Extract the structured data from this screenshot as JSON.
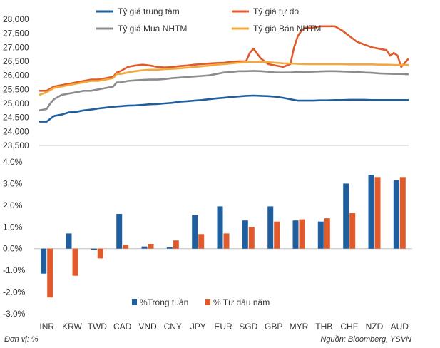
{
  "chart_data": [
    {
      "type": "line",
      "title": "",
      "ylim": [
        23500,
        28000
      ],
      "y_ticks": [
        "28,000",
        "27,500",
        "27,000",
        "26,500",
        "26,000",
        "25,500",
        "25,000",
        "24,500",
        "24,000",
        "23,500"
      ],
      "y_tick_values": [
        28000,
        27500,
        27000,
        26500,
        26000,
        25500,
        25000,
        24500,
        24000,
        23500
      ],
      "x_range": [
        0,
        100
      ],
      "series": [
        {
          "name": "Tỷ giá trung tâm",
          "color": "#1f5f9f",
          "x": [
            0,
            2,
            3,
            4,
            6,
            8,
            10,
            12,
            14,
            16,
            18,
            20,
            22,
            24,
            26,
            28,
            30,
            32,
            34,
            36,
            38,
            40,
            42,
            44,
            46,
            48,
            50,
            52,
            54,
            56,
            58,
            60,
            62,
            64,
            66,
            68,
            70,
            72,
            74,
            76,
            78,
            80,
            82,
            84,
            86,
            88,
            90,
            92,
            94,
            96,
            98,
            100
          ],
          "values": [
            24350,
            24350,
            24450,
            24550,
            24600,
            24680,
            24700,
            24750,
            24780,
            24820,
            24850,
            24880,
            24900,
            24920,
            24930,
            24950,
            24970,
            24980,
            25000,
            25020,
            25060,
            25080,
            25100,
            25120,
            25150,
            25180,
            25200,
            25230,
            25250,
            25270,
            25280,
            25270,
            25260,
            25240,
            25200,
            25150,
            25100,
            25100,
            25100,
            25110,
            25110,
            25120,
            25120,
            25130,
            25130,
            25130,
            25120,
            25120,
            25120,
            25120,
            25120,
            25120
          ]
        },
        {
          "name": "Tỷ giá tự do",
          "color": "#e05a2b",
          "x": [
            0,
            2,
            4,
            6,
            8,
            10,
            12,
            14,
            16,
            18,
            20,
            21,
            22,
            24,
            26,
            28,
            30,
            32,
            34,
            36,
            38,
            40,
            42,
            44,
            46,
            48,
            50,
            52,
            54,
            56,
            57,
            58,
            60,
            62,
            64,
            66,
            68,
            69,
            70,
            71,
            72,
            74,
            76,
            78,
            80,
            82,
            84,
            86,
            88,
            90,
            92,
            94,
            95,
            96,
            97,
            98,
            99,
            100
          ],
          "values": [
            25450,
            25450,
            25600,
            25650,
            25700,
            25750,
            25800,
            25850,
            25850,
            25900,
            25950,
            26100,
            26150,
            26300,
            26350,
            26380,
            26350,
            26300,
            26280,
            26300,
            26330,
            26350,
            26380,
            26400,
            26420,
            26440,
            26450,
            26480,
            26500,
            26500,
            26800,
            26950,
            26600,
            26400,
            26350,
            26300,
            26400,
            27000,
            27400,
            27600,
            27700,
            27700,
            27750,
            27750,
            27750,
            27600,
            27400,
            27200,
            27100,
            27000,
            26950,
            26900,
            26700,
            26800,
            26700,
            26300,
            26450,
            26600
          ]
        },
        {
          "name": "Tỷ giá Mua NHTM",
          "color": "#8c8c8c",
          "x": [
            0,
            2,
            3,
            4,
            6,
            8,
            10,
            12,
            14,
            16,
            18,
            20,
            21,
            22,
            24,
            26,
            28,
            30,
            32,
            34,
            36,
            38,
            40,
            42,
            44,
            46,
            48,
            50,
            52,
            54,
            56,
            58,
            60,
            62,
            64,
            66,
            68,
            70,
            72,
            74,
            76,
            78,
            80,
            82,
            84,
            86,
            88,
            90,
            92,
            94,
            96,
            98,
            100
          ],
          "values": [
            24750,
            24800,
            25000,
            25150,
            25300,
            25350,
            25400,
            25450,
            25450,
            25500,
            25550,
            25600,
            25750,
            25750,
            25800,
            25820,
            25840,
            25850,
            25850,
            25870,
            25900,
            25920,
            25940,
            25960,
            25980,
            26000,
            26050,
            26100,
            26120,
            26150,
            26150,
            26160,
            26150,
            26130,
            26100,
            26100,
            26100,
            26120,
            26120,
            26130,
            26140,
            26150,
            26150,
            26140,
            26130,
            26120,
            26100,
            26090,
            26070,
            26060,
            26050,
            26050,
            26040
          ]
        },
        {
          "name": "Tỷ giá Bán NHTM",
          "color": "#f2a93b",
          "x": [
            0,
            2,
            4,
            6,
            8,
            10,
            12,
            14,
            16,
            18,
            20,
            21,
            22,
            24,
            26,
            28,
            30,
            32,
            34,
            36,
            38,
            40,
            42,
            44,
            46,
            48,
            50,
            52,
            54,
            56,
            58,
            60,
            62,
            64,
            66,
            68,
            70,
            72,
            74,
            76,
            78,
            80,
            82,
            84,
            86,
            88,
            90,
            92,
            94,
            96,
            98,
            100
          ],
          "values": [
            25300,
            25400,
            25550,
            25600,
            25650,
            25700,
            25750,
            25800,
            25800,
            25850,
            25900,
            26050,
            26050,
            26100,
            26150,
            26180,
            26200,
            26200,
            26220,
            26230,
            26250,
            26270,
            26300,
            26320,
            26350,
            26380,
            26400,
            26430,
            26450,
            26470,
            26480,
            26480,
            26470,
            26450,
            26430,
            26420,
            26410,
            26400,
            26400,
            26400,
            26400,
            26400,
            26400,
            26390,
            26390,
            26390,
            26390,
            26380,
            26380,
            26370,
            26370,
            26370
          ]
        }
      ]
    },
    {
      "type": "bar",
      "title": "",
      "categories": [
        "INR",
        "KRW",
        "TWD",
        "CAD",
        "VND",
        "CNY",
        "JPY",
        "EUR",
        "SGD",
        "GBP",
        "MYR",
        "THB",
        "CHF",
        "NZD",
        "AUD"
      ],
      "ylim": [
        -3.0,
        4.0
      ],
      "y_ticks": [
        "4.0%",
        "3.0%",
        "2.0%",
        "1.0%",
        "0.0%",
        "-1.0%",
        "-2.0%",
        "-3.0%"
      ],
      "y_tick_values": [
        4.0,
        3.0,
        2.0,
        1.0,
        0.0,
        -1.0,
        -2.0,
        -3.0
      ],
      "series": [
        {
          "name": "%Trong tuần",
          "color": "#1f5f9f",
          "values": [
            -1.15,
            0.7,
            -0.05,
            1.6,
            0.1,
            0.07,
            1.55,
            1.95,
            1.3,
            1.95,
            1.3,
            1.25,
            3.0,
            3.4,
            3.15
          ]
        },
        {
          "name": "% Từ đầu năm",
          "color": "#e05a2b",
          "values": [
            -2.25,
            -1.25,
            -0.45,
            0.17,
            0.22,
            0.38,
            0.67,
            0.7,
            1.0,
            1.25,
            1.35,
            1.4,
            1.65,
            3.3,
            3.3
          ]
        }
      ]
    }
  ],
  "footnote_left": "Đơn vị: %",
  "footnote_right": "Nguồn: Bloomberg, YSVN"
}
